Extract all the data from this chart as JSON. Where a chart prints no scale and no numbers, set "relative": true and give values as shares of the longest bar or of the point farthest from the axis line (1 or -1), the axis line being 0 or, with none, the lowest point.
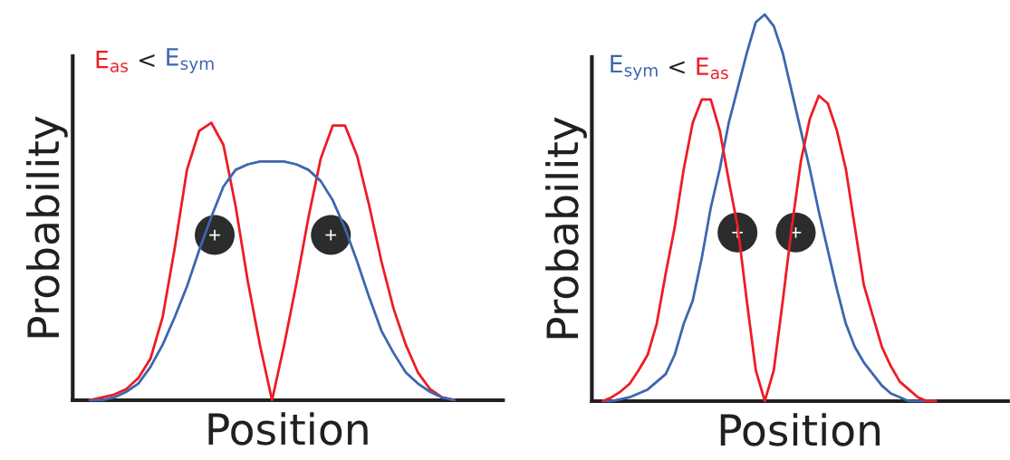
{
  "chart_data": [
    {
      "type": "line",
      "relative": true,
      "xlabel": "Position",
      "ylabel": "Probability",
      "annotations": [
        "<"
      ],
      "categories": [
        null,
        null,
        null,
        null,
        null,
        null,
        null,
        null,
        null,
        null,
        null,
        null,
        null,
        null,
        null,
        null,
        null,
        null,
        null,
        null,
        null,
        null,
        null,
        null,
        null,
        null,
        null,
        null,
        null,
        null,
        null
      ],
      "series": [
        {
          "name": "E$_{as}$",
          "color": "#ed1c24",
          "values": [
            0,
            0.01,
            0.02,
            0.04,
            0.08,
            0.15,
            0.3,
            0.55,
            0.83,
            0.97,
            1.0,
            0.92,
            0.7,
            0.43,
            0.2,
            0,
            0.2,
            0.42,
            0.66,
            0.87,
            0.99,
            0.99,
            0.88,
            0.7,
            0.5,
            0.33,
            0.2,
            0.1,
            0.04,
            0.01,
            0
          ]
        },
        {
          "name": "E$_{sym}$",
          "color": "#3d66b0",
          "values": [
            0,
            0,
            0.01,
            0.03,
            0.06,
            0.12,
            0.2,
            0.3,
            0.41,
            0.54,
            0.66,
            0.77,
            0.83,
            0.85,
            0.86,
            0.86,
            0.86,
            0.85,
            0.83,
            0.79,
            0.72,
            0.62,
            0.5,
            0.37,
            0.25,
            0.17,
            0.1,
            0.06,
            0.03,
            0.01,
            0
          ]
        }
      ]
    },
    {
      "type": "line",
      "relative": true,
      "xlabel": "Position",
      "ylabel": "Probability",
      "annotations": [
        "<"
      ],
      "categories": [
        null,
        null,
        null,
        null,
        null,
        null,
        null,
        null,
        null,
        null,
        null,
        null,
        null,
        null,
        null,
        null,
        null,
        null,
        null,
        null,
        null,
        null,
        null,
        null,
        null,
        null,
        null,
        null,
        null,
        null,
        null,
        null,
        null,
        null,
        null,
        null,
        null,
        null
      ],
      "series": [
        {
          "name": "E$_{sym}$",
          "color": "#3d66b0",
          "values": [
            0,
            0,
            0.005,
            0.01,
            0.02,
            0.03,
            0.05,
            0.07,
            0.12,
            0.2,
            0.26,
            0.37,
            0.5,
            0.6,
            0.72,
            0.81,
            0.9,
            0.98,
            1.0,
            0.97,
            0.9,
            0.8,
            0.7,
            0.6,
            0.49,
            0.39,
            0.29,
            0.2,
            0.14,
            0.1,
            0.07,
            0.04,
            0.02,
            0.01,
            0,
            0,
            0,
            0
          ]
        },
        {
          "name": "E$_{as}$",
          "color": "#ed1c24",
          "values": [
            0,
            0.01,
            0.025,
            0.045,
            0.08,
            0.12,
            0.2,
            0.33,
            0.45,
            0.6,
            0.72,
            0.78,
            0.78,
            0.7,
            0.57,
            0.45,
            0.26,
            0.08,
            0,
            0.08,
            0.26,
            0.45,
            0.62,
            0.73,
            0.79,
            0.77,
            0.7,
            0.6,
            0.45,
            0.3,
            0.22,
            0.14,
            0.09,
            0.05,
            0.03,
            0.01,
            0,
            0
          ]
        }
      ]
    }
  ]
}
